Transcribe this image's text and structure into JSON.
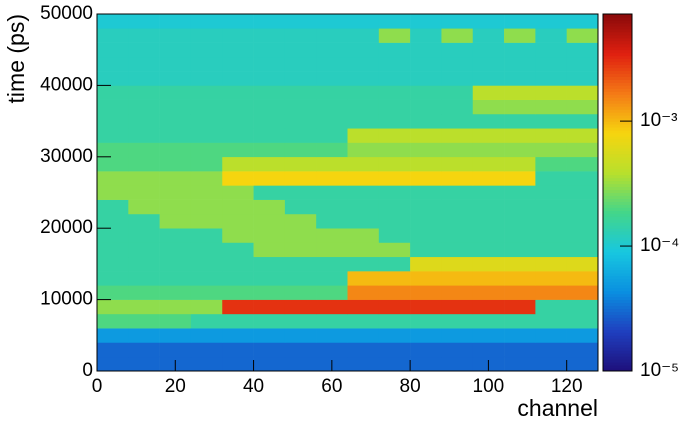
{
  "chart_data": {
    "type": "heatmap",
    "x_label": "channel",
    "y_label": "time (ps)",
    "xbins": [
      0,
      8,
      16,
      24,
      32,
      40,
      48,
      56,
      64,
      72,
      80,
      88,
      96,
      104,
      112,
      120,
      128
    ],
    "ybins": [
      0,
      2000,
      4000,
      6000,
      8000,
      10000,
      12000,
      14000,
      16000,
      18000,
      20000,
      22000,
      24000,
      26000,
      28000,
      30000,
      32000,
      34000,
      36000,
      38000,
      40000,
      42000,
      44000,
      46000,
      48000,
      50000
    ],
    "z": [
      [
        3e-05,
        3e-05,
        3e-05,
        3e-05,
        3e-05,
        3e-05,
        3e-05,
        3e-05,
        3e-05,
        3e-05,
        3e-05,
        3e-05,
        3e-05,
        3e-05,
        3e-05,
        3e-05
      ],
      [
        3e-05,
        3e-05,
        3e-05,
        3e-05,
        3e-05,
        3e-05,
        3e-05,
        3e-05,
        3e-05,
        3e-05,
        3e-05,
        3e-05,
        3e-05,
        3e-05,
        3e-05,
        3e-05
      ],
      [
        5e-05,
        5e-05,
        5e-05,
        5e-05,
        5e-05,
        5e-05,
        5e-05,
        5e-05,
        5e-05,
        5e-05,
        5e-05,
        5e-05,
        5e-05,
        5e-05,
        5e-05,
        5e-05
      ],
      [
        0.0002,
        0.0002,
        0.0002,
        0.00015,
        0.00015,
        0.00015,
        0.00015,
        0.00015,
        0.00015,
        0.00015,
        0.00015,
        0.00015,
        0.00015,
        0.00015,
        0.00015,
        0.00015
      ],
      [
        0.0003,
        0.0003,
        0.0003,
        0.0003,
        0.003,
        0.003,
        0.003,
        0.003,
        0.003,
        0.003,
        0.003,
        0.003,
        0.003,
        0.003,
        0.00015,
        0.00015
      ],
      [
        0.0002,
        0.0002,
        0.0002,
        0.0002,
        0.0002,
        0.0002,
        0.0002,
        0.0002,
        0.0015,
        0.0015,
        0.0015,
        0.0015,
        0.0015,
        0.0015,
        0.0015,
        0.0015
      ],
      [
        0.00015,
        0.00015,
        0.00015,
        0.00015,
        0.00015,
        0.00015,
        0.00015,
        0.00015,
        0.001,
        0.001,
        0.001,
        0.001,
        0.001,
        0.001,
        0.001,
        0.001
      ],
      [
        0.00015,
        0.00015,
        0.00015,
        0.00015,
        0.00015,
        0.00015,
        0.00015,
        0.00015,
        0.00015,
        0.00015,
        0.0006,
        0.0006,
        0.0006,
        0.0006,
        0.0006,
        0.0006
      ],
      [
        0.00015,
        0.00015,
        0.00015,
        0.00015,
        0.00015,
        0.0003,
        0.0003,
        0.0003,
        0.0003,
        0.0003,
        0.00015,
        0.00015,
        0.00015,
        0.00015,
        0.00015,
        0.00015
      ],
      [
        0.00015,
        0.00015,
        0.00015,
        0.00015,
        0.0003,
        0.0003,
        0.0003,
        0.0003,
        0.0003,
        0.00015,
        0.00015,
        0.00015,
        0.00015,
        0.00015,
        0.00015,
        0.00015
      ],
      [
        0.00015,
        0.00015,
        0.0003,
        0.0003,
        0.0003,
        0.0003,
        0.0003,
        0.00015,
        0.00015,
        0.00015,
        0.00015,
        0.00015,
        0.00015,
        0.00015,
        0.00015,
        0.00015
      ],
      [
        0.00015,
        0.0003,
        0.0003,
        0.0003,
        0.0003,
        0.0003,
        0.00015,
        0.00015,
        0.00015,
        0.00015,
        0.00015,
        0.00015,
        0.00015,
        0.00015,
        0.00015,
        0.00015
      ],
      [
        0.0003,
        0.0003,
        0.0003,
        0.0003,
        0.0003,
        0.00015,
        0.00015,
        0.00015,
        0.00015,
        0.00015,
        0.00015,
        0.00015,
        0.00015,
        0.00015,
        0.00015,
        0.00015
      ],
      [
        0.0003,
        0.0003,
        0.0003,
        0.0003,
        0.0008,
        0.0008,
        0.0008,
        0.0008,
        0.0008,
        0.0008,
        0.0008,
        0.0008,
        0.0008,
        0.0008,
        0.00015,
        0.00015
      ],
      [
        0.0002,
        0.0002,
        0.0002,
        0.0002,
        0.0004,
        0.0004,
        0.0004,
        0.0004,
        0.0004,
        0.0004,
        0.0004,
        0.0004,
        0.0004,
        0.0004,
        0.0002,
        0.0002
      ],
      [
        0.0002,
        0.0002,
        0.0002,
        0.0002,
        0.0002,
        0.0002,
        0.0002,
        0.0002,
        0.0003,
        0.0003,
        0.0003,
        0.0003,
        0.0003,
        0.0003,
        0.0003,
        0.0003
      ],
      [
        0.00015,
        0.00015,
        0.00015,
        0.00015,
        0.00015,
        0.00015,
        0.00015,
        0.00015,
        0.0004,
        0.0004,
        0.0004,
        0.0004,
        0.0004,
        0.0004,
        0.0004,
        0.0004
      ],
      [
        0.00015,
        0.00015,
        0.00015,
        0.00015,
        0.00015,
        0.00015,
        0.00015,
        0.00015,
        0.00015,
        0.00015,
        0.00015,
        0.00015,
        0.00015,
        0.00015,
        0.00015,
        0.00015
      ],
      [
        0.00015,
        0.00015,
        0.00015,
        0.00015,
        0.00015,
        0.00015,
        0.00015,
        0.00015,
        0.00015,
        0.00015,
        0.00015,
        0.00015,
        0.0003,
        0.0003,
        0.0003,
        0.0003
      ],
      [
        0.00015,
        0.00015,
        0.00015,
        0.00015,
        0.00015,
        0.00015,
        0.00015,
        0.00015,
        0.00015,
        0.00015,
        0.00015,
        0.00015,
        0.0004,
        0.0004,
        0.0004,
        0.0004
      ],
      [
        0.00012,
        0.00012,
        0.00012,
        0.00012,
        0.00012,
        0.00012,
        0.00012,
        0.00012,
        0.00012,
        0.00012,
        0.00012,
        0.00012,
        0.00012,
        0.00012,
        0.00012,
        0.00012
      ],
      [
        0.00012,
        0.00012,
        0.00012,
        0.00012,
        0.00012,
        0.00012,
        0.00012,
        0.00012,
        0.00012,
        0.00012,
        0.00012,
        0.00012,
        0.00012,
        0.00012,
        0.00012,
        0.00012
      ],
      [
        0.00012,
        0.00012,
        0.00012,
        0.00012,
        0.00012,
        0.00012,
        0.00012,
        0.00012,
        0.00012,
        0.00012,
        0.00012,
        0.00012,
        0.00012,
        0.00012,
        0.00012,
        0.00012
      ],
      [
        0.00012,
        0.00012,
        0.00012,
        0.00012,
        0.00012,
        0.00012,
        0.00012,
        0.00012,
        0.00012,
        0.0003,
        0.00012,
        0.0003,
        0.00012,
        0.0003,
        0.00012,
        0.0003
      ],
      [
        0.0001,
        0.0001,
        0.0001,
        0.0001,
        0.0001,
        0.0001,
        0.0001,
        0.0001,
        0.0001,
        0.0001,
        0.0001,
        0.0001,
        0.0001,
        0.0001,
        0.0001,
        0.0001
      ]
    ],
    "xlim": [
      0,
      128
    ],
    "xticks": [
      0,
      20,
      40,
      60,
      80,
      100,
      120
    ],
    "ylim": [
      0,
      50000
    ],
    "yticks": [
      0,
      10000,
      20000,
      30000,
      40000,
      50000
    ],
    "zlim": [
      1e-05,
      0.0072
    ],
    "zlog": true,
    "zticks": [
      {
        "value": 1e-05,
        "label": "10⁻⁵"
      },
      {
        "value": 0.0001,
        "label": "10⁻⁴"
      },
      {
        "value": 0.001,
        "label": "10⁻³"
      }
    ],
    "colormap": [
      "#1e0f7a",
      "#1f3fbf",
      "#0a8fe0",
      "#17c7e0",
      "#43d68a",
      "#b8e02c",
      "#f6d50f",
      "#f47a16",
      "#e02010",
      "#8a0a0a"
    ]
  }
}
